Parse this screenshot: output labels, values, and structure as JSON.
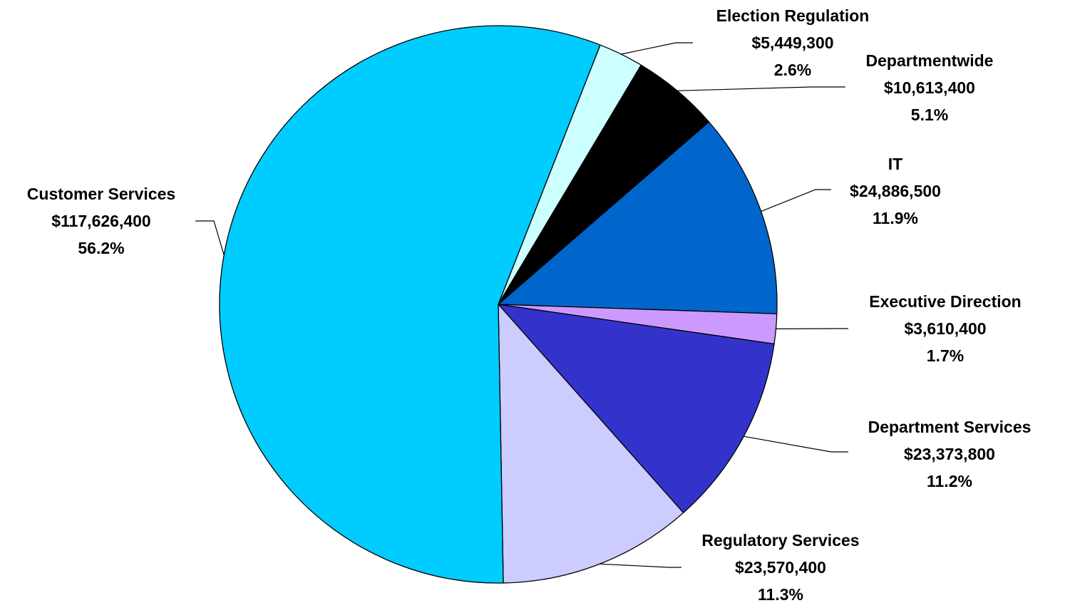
{
  "chart_data": {
    "type": "pie",
    "slices": [
      {
        "name": "Election Regulation",
        "amount": "$5,449,300",
        "pct": "2.6%",
        "value": 5449300,
        "color": "#CCFFFF"
      },
      {
        "name": "Departmentwide",
        "amount": "$10,613,400",
        "pct": "5.1%",
        "value": 10613400,
        "color": "#000000"
      },
      {
        "name": "IT",
        "amount": "$24,886,500",
        "pct": "11.9%",
        "value": 24886500,
        "color": "#0066CC"
      },
      {
        "name": "Executive Direction",
        "amount": "$3,610,400",
        "pct": "1.7%",
        "value": 3610400,
        "color": "#CC99FF"
      },
      {
        "name": "Department Services",
        "amount": "$23,373,800",
        "pct": "11.2%",
        "value": 23373800,
        "color": "#3333CC"
      },
      {
        "name": "Regulatory Services",
        "amount": "$23,570,400",
        "pct": "11.3%",
        "value": 23570400,
        "color": "#CCCCFF"
      },
      {
        "name": "Customer Services",
        "amount": "$117,626,400",
        "pct": "56.2%",
        "value": 117626400,
        "color": "#00CCFF"
      }
    ]
  }
}
